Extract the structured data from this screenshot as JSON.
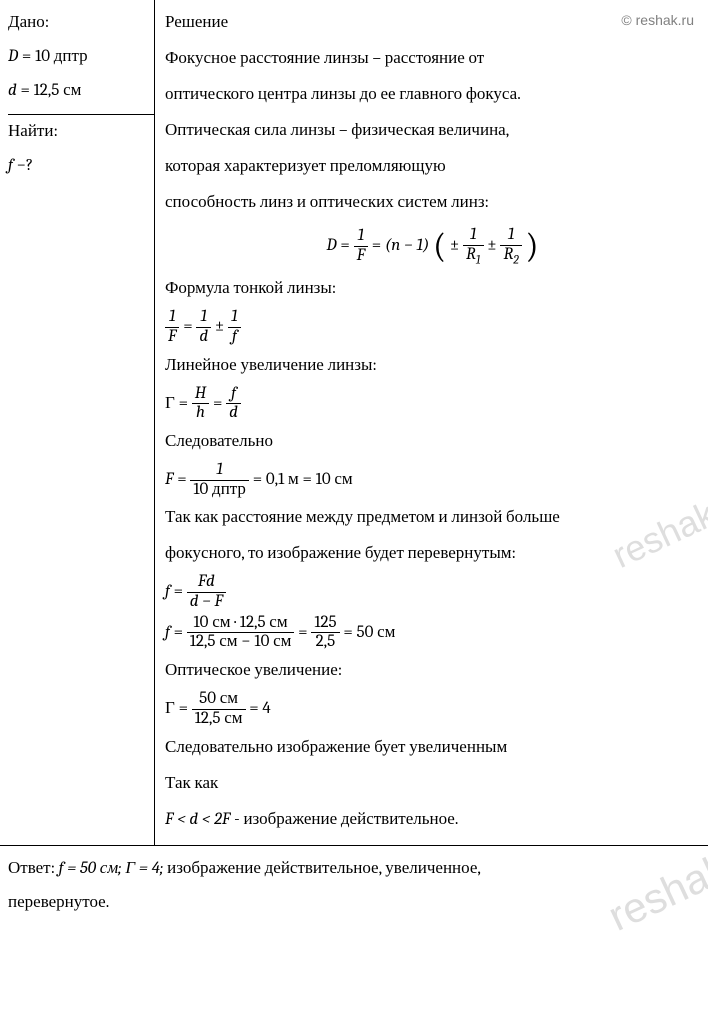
{
  "copyright": "© reshak.ru",
  "watermark": "reshak.ru",
  "given": {
    "title": "Дано:",
    "D_var": "D",
    "D_eq": " = 10 дптр",
    "d_var": "d",
    "d_eq": " = 12,5 см"
  },
  "find": {
    "title": "Найти:",
    "f_var": "f",
    "f_q": " −?"
  },
  "solution": {
    "title": "Решение",
    "p1": "Фокусное расстояние линзы – расстояние от",
    "p2": "оптического центра линзы до ее главного фокуса.",
    "p3": "Оптическая сила линзы – физическая величина,",
    "p4": "которая характеризует преломляющую",
    "p5": "способность линз и оптических систем линз:",
    "eq1": {
      "D": "D",
      "eq": " = ",
      "one": "1",
      "F": "F",
      "nparen": "(n − 1) ",
      "pm1": "± ",
      "pm2": " ± ",
      "R1": "R",
      "s1": "1",
      "R2": "R",
      "s2": "2"
    },
    "p6": "Формула тонкой линзы:",
    "eq2": {
      "one": "1",
      "F": "F",
      "d": "d",
      "f": "f",
      "pm": " ± "
    },
    "p7": "Линейное увеличение линзы:",
    "eq3": {
      "G": "Г",
      "H": "H",
      "h": "h",
      "f": "f",
      "d": "d"
    },
    "p8": "Следовательно",
    "eq4": {
      "F": "F",
      "one": "1",
      "den": "10 дптр",
      "res": " = 0,1 м = 10 см"
    },
    "p9": "Так как расстояние между предметом и линзой больше",
    "p10": "фокусного, то изображение будет перевернутым:",
    "eq5": {
      "f": "f",
      "Fd": "Fd",
      "dmF": "d − F"
    },
    "eq6": {
      "f": "f",
      "num": "10 см · 12,5 см",
      "den": "12,5 см − 10 см",
      "fr2n": "125",
      "fr2d": "2,5",
      "res": " = 50 см"
    },
    "p11": "Оптическое увеличение:",
    "eq7": {
      "G": "Г",
      "num": "50 см",
      "den": "12,5 см",
      "res": " = 4"
    },
    "p12": "Следовательно изображение бует увеличенным",
    "p13": "Так как",
    "eq8": {
      "cond": "F < d < 2F",
      "tail": "- изображение действительное."
    }
  },
  "answer": {
    "label": "Ответ: ",
    "f": "f = 50 см;  Г = 4; ",
    "tail": "изображение действительное, увеличенное,",
    "tail2": "перевернутое."
  }
}
